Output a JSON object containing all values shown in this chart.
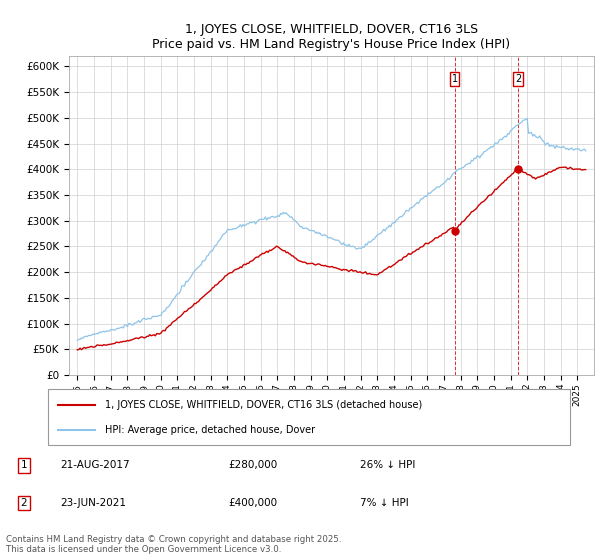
{
  "title": "1, JOYES CLOSE, WHITFIELD, DOVER, CT16 3LS",
  "subtitle": "Price paid vs. HM Land Registry's House Price Index (HPI)",
  "ylim": [
    0,
    620000
  ],
  "hpi_color": "#8ec4e8",
  "price_color": "#cc0000",
  "marker1_year": 2017.635,
  "marker1_price": 280000,
  "marker1_date": "21-AUG-2017",
  "marker1_pct": "26% ↓ HPI",
  "marker2_year": 2021.46,
  "marker2_price": 400000,
  "marker2_date": "23-JUN-2021",
  "marker2_pct": "7% ↓ HPI",
  "legend_label1": "1, JOYES CLOSE, WHITFIELD, DOVER, CT16 3LS (detached house)",
  "legend_label2": "HPI: Average price, detached house, Dover",
  "footnote": "Contains HM Land Registry data © Crown copyright and database right 2025.\nThis data is licensed under the Open Government Licence v3.0.",
  "start_year": 1995,
  "end_year": 2025
}
